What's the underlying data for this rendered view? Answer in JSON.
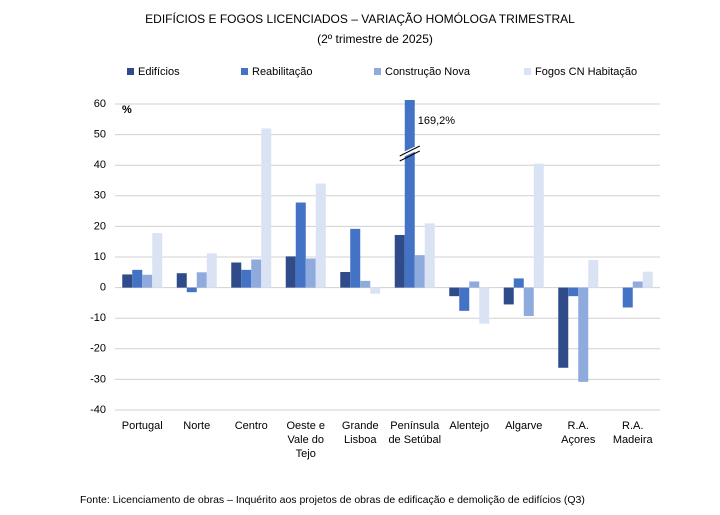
{
  "chart_data": {
    "type": "bar",
    "title": "EDIFÍCIOS E FOGOS LICENCIADOS – VARIAÇÃO HOMÓLOGA TRIMESTRAL",
    "subtitle": "(2º trimestre de 2025)",
    "ylabel": "%",
    "source": "Fonte: Licenciamento de obras – Inquérito aos projetos de obras de edificação e demolição de edifícios (Q3)",
    "categories": [
      "Portugal",
      "Norte",
      "Centro",
      "Oeste e Vale do Tejo",
      "Grande Lisboa",
      "Península de Setúbal",
      "Alentejo",
      "Algarve",
      "R.A. Açores",
      "R.A. Madeira"
    ],
    "series": [
      {
        "name": "Edifícios",
        "color": "#2f4b8a",
        "values": [
          4.3,
          4.7,
          8.2,
          10.2,
          5.1,
          17.2,
          -2.8,
          -5.5,
          -26.2,
          0
        ]
      },
      {
        "name": "Reabilitação",
        "color": "#4472c4",
        "values": [
          5.8,
          -1.5,
          5.8,
          27.8,
          19.2,
          169.2,
          -7.6,
          3,
          -2.8,
          -6.5
        ],
        "value_labels": [
          null,
          null,
          null,
          null,
          null,
          "169,2%",
          null,
          null,
          null,
          null
        ]
      },
      {
        "name": "Construção Nova",
        "color": "#8faadc",
        "values": [
          4.2,
          5,
          9.2,
          9.5,
          2.2,
          10.6,
          2,
          -9.3,
          -30.8,
          2
        ]
      },
      {
        "name": "Fogos CN Habitação",
        "color": "#dae3f3",
        "values": [
          17.8,
          11.2,
          52,
          34,
          -2,
          21,
          -11.8,
          40.5,
          9,
          5.2
        ]
      }
    ],
    "ylim": [
      -40,
      60
    ],
    "yticks": [
      -40,
      -30,
      -20,
      -10,
      0,
      10,
      20,
      30,
      40,
      50,
      60
    ],
    "grid": true
  }
}
